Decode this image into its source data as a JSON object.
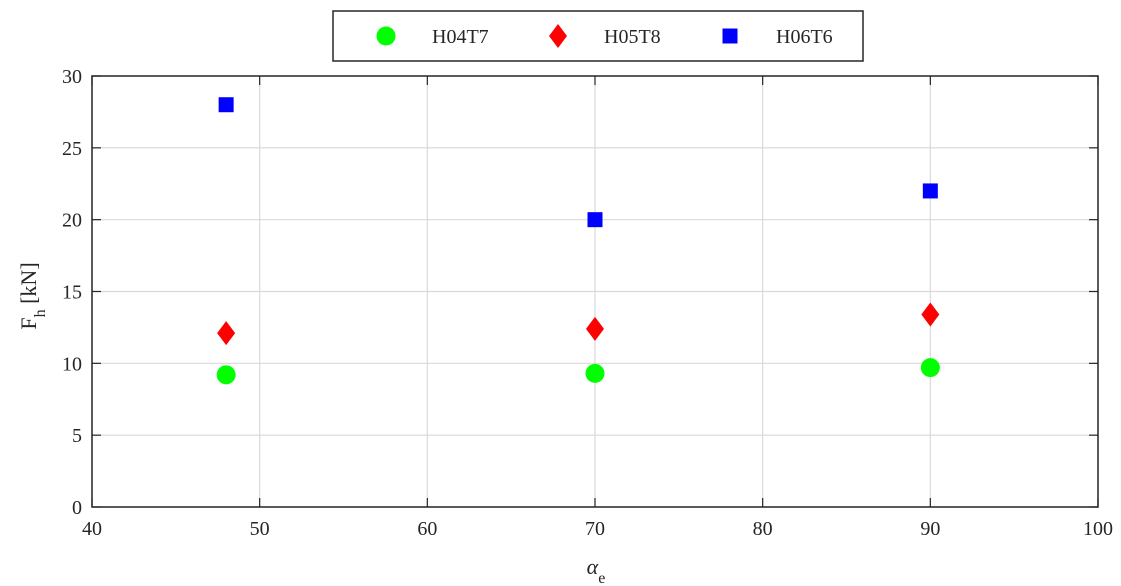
{
  "chart_data": {
    "type": "scatter",
    "xlabel": "α",
    "xlabel_sub": "e",
    "ylabel": "F",
    "ylabel_sub": "h",
    "ylabel_unit": " [kN]",
    "xlim": [
      40,
      100
    ],
    "ylim": [
      0,
      30
    ],
    "xticks": [
      "40",
      "50",
      "60",
      "70",
      "80",
      "90",
      "100"
    ],
    "yticks": [
      "0",
      "5",
      "10",
      "15",
      "20",
      "25",
      "30"
    ],
    "grid": true,
    "legend_position": "top-center-outside",
    "series": [
      {
        "name": "H04T7",
        "marker": "circle",
        "color": "#00ff00",
        "x": [
          48,
          70,
          90
        ],
        "y": [
          9.2,
          9.3,
          9.7
        ]
      },
      {
        "name": "H05T8",
        "marker": "diamond",
        "color": "#ff0000",
        "x": [
          48,
          70,
          90
        ],
        "y": [
          12.1,
          12.4,
          13.4
        ]
      },
      {
        "name": "H06T6",
        "marker": "square",
        "color": "#0000ff",
        "x": [
          48,
          70,
          90
        ],
        "y": [
          28,
          20,
          22
        ]
      }
    ]
  }
}
